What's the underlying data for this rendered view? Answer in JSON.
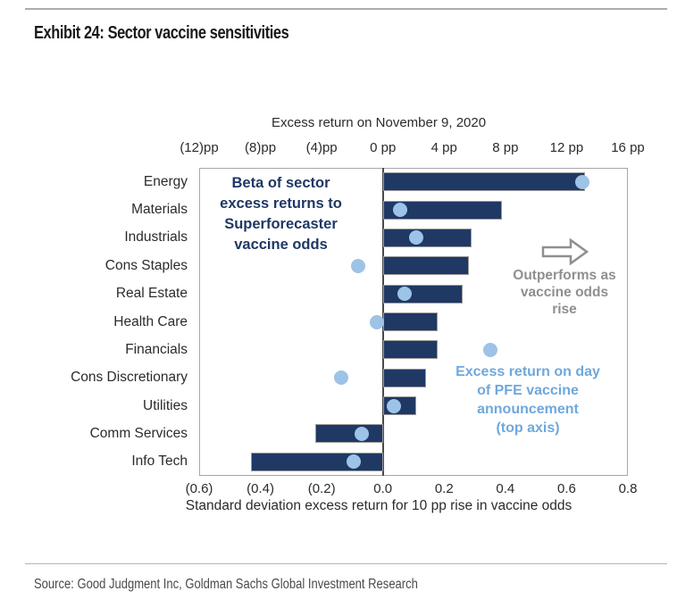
{
  "page": {
    "title": "Exhibit 24: Sector vaccine sensitivities",
    "source": "Source: Good Judgment Inc, Goldman Sachs Global Investment Research"
  },
  "chart_data": {
    "type": "bar",
    "orientation": "horizontal",
    "top_axis": {
      "title": "Excess return on November 9, 2020",
      "tick_labels": [
        "(12)pp",
        "(8)pp",
        "(4)pp",
        "0 pp",
        "4 pp",
        "8 pp",
        "12 pp",
        "16 pp"
      ],
      "tick_values": [
        -12,
        -8,
        -4,
        0,
        4,
        8,
        12,
        16
      ],
      "range": [
        -12,
        16
      ]
    },
    "bottom_axis": {
      "title": "Standard deviation excess return for 10 pp rise in vaccine odds",
      "tick_labels": [
        "(0.6)",
        "(0.4)",
        "(0.2)",
        "0.0",
        "0.2",
        "0.4",
        "0.6",
        "0.8"
      ],
      "tick_values": [
        -0.6,
        -0.4,
        -0.2,
        0.0,
        0.2,
        0.4,
        0.6,
        0.8
      ],
      "range": [
        -0.6,
        0.8
      ]
    },
    "categories": [
      "Energy",
      "Materials",
      "Industrials",
      "Cons Staples",
      "Real Estate",
      "Health Care",
      "Financials",
      "Cons Discretionary",
      "Utilities",
      "Comm Services",
      "Info Tech"
    ],
    "series": [
      {
        "name": "Beta of sector excess returns to Superforecaster vaccine odds",
        "type": "bar",
        "axis": "bottom",
        "values": [
          0.66,
          0.39,
          0.29,
          0.28,
          0.26,
          0.18,
          0.18,
          0.14,
          0.11,
          -0.22,
          -0.43
        ]
      },
      {
        "name": "Excess return on day of PFE vaccine announcement",
        "type": "scatter",
        "axis": "top",
        "values": [
          13.0,
          1.1,
          2.2,
          -1.6,
          1.4,
          -0.4,
          7.0,
          -2.7,
          0.7,
          -1.4,
          -1.9
        ]
      }
    ],
    "annotations": {
      "beta_note": "Beta of sector\nexcess returns to\nSuperforecaster\nvaccine odds",
      "outperform_note": "Outperforms as\nvaccine odds\nrise",
      "pfe_note": "Excess return on day\nof PFE vaccine\nannouncement\n(top axis)"
    },
    "legend_position": "annotations-inside-plot",
    "grid": false,
    "colors": {
      "bar": "#1F3864",
      "bar_border": "#9b9b9b",
      "dot": "#9DC3E6",
      "beta_note": "#1F3864",
      "pfe_note": "#6FA8DC",
      "gray_note": "#8F8F8F",
      "plot_border": "#A6A6A6",
      "zero_line": "#4a4a4a"
    }
  }
}
